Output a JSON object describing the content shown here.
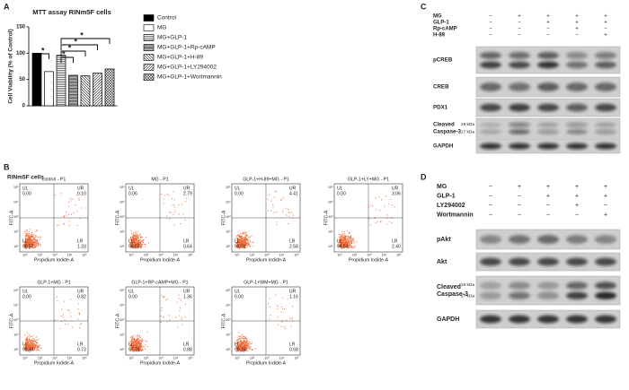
{
  "panel_labels": [
    "A",
    "B",
    "C",
    "D"
  ],
  "chart_data": {
    "type": "bar",
    "title": "MTT assay RINm5F cells",
    "y_label": "Cell Viability (% of Control)",
    "categories": [
      "Control",
      "MG",
      "MG+GLP-1",
      "MG+GLP-1+Rp-cAMP",
      "MG+GLP-1+H-89",
      "MG+GLP-1+LY294002",
      "MG+GLP-1+Wortmannin"
    ],
    "values": [
      100,
      65,
      96,
      58,
      57,
      62,
      70
    ],
    "color": "#000000",
    "ylim": [
      0,
      150
    ],
    "yticks": [
      0,
      50,
      100,
      150
    ],
    "annotations": [
      "*",
      "*",
      "*",
      "*",
      "*"
    ]
  },
  "flow": {
    "subtitle": "RINm5F cells",
    "x_label": "Propidium Iodide-A",
    "y_label": "FITC-A",
    "axis_ticks": [
      "10¹",
      "10²",
      "10³",
      "10⁴",
      "10⁵"
    ],
    "plots": [
      {
        "title": "control - P1",
        "quadrants": [
          {
            "label": "UL",
            "value": "0.00"
          },
          {
            "label": "UR",
            "value": "0.10"
          },
          {
            "label": "LL",
            "value": "98.57"
          },
          {
            "label": "LR",
            "value": "1.33"
          }
        ]
      },
      {
        "title": "MG - P1",
        "quadrants": [
          {
            "label": "UL",
            "value": "0.06"
          },
          {
            "label": "UR",
            "value": "2.79"
          },
          {
            "label": "LL",
            "value": "96.50"
          },
          {
            "label": "LR",
            "value": "0.64"
          }
        ]
      },
      {
        "title": "GLP-1+H-89+MG - P1",
        "quadrants": [
          {
            "label": "UL",
            "value": "0.00"
          },
          {
            "label": "UR",
            "value": "4.41"
          },
          {
            "label": "LL",
            "value": "93.01"
          },
          {
            "label": "LR",
            "value": "2.58"
          }
        ]
      },
      {
        "title": "GLP-1+LY+MG - P1",
        "quadrants": [
          {
            "label": "UL",
            "value": "0.00"
          },
          {
            "label": "UR",
            "value": "3.06"
          },
          {
            "label": "LL",
            "value": "94.54"
          },
          {
            "label": "LR",
            "value": "2.40"
          }
        ]
      },
      {
        "title": "GLP-1+MG - P1",
        "quadrants": [
          {
            "label": "UL",
            "value": "0.00"
          },
          {
            "label": "UR",
            "value": "0.82"
          },
          {
            "label": "LL",
            "value": "98.44"
          },
          {
            "label": "LR",
            "value": "0.73"
          }
        ]
      },
      {
        "title": "GLP-1+RP-cAMP+MG - P1",
        "quadrants": [
          {
            "label": "UL",
            "value": "0.00"
          },
          {
            "label": "UR",
            "value": "1.36"
          },
          {
            "label": "LL",
            "value": "97.76"
          },
          {
            "label": "LR",
            "value": "0.88"
          }
        ]
      },
      {
        "title": "GLP-1+WM+MG - P1",
        "quadrants": [
          {
            "label": "UL",
            "value": "0.00"
          },
          {
            "label": "UR",
            "value": "1.16"
          },
          {
            "label": "LL",
            "value": "98.16"
          },
          {
            "label": "LR",
            "value": "0.68"
          }
        ]
      }
    ]
  },
  "blot_c": {
    "treatments": [
      {
        "name": "MG",
        "signs": [
          "−",
          "+",
          "+",
          "+",
          "+"
        ]
      },
      {
        "name": "GLP-1",
        "signs": [
          "−",
          "−",
          "+",
          "+",
          "+"
        ]
      },
      {
        "name": "Rp-cAMP",
        "signs": [
          "−",
          "−",
          "−",
          "+",
          "−"
        ]
      },
      {
        "name": "H-89",
        "signs": [
          "−",
          "−",
          "−",
          "−",
          "+"
        ]
      }
    ],
    "bands": [
      {
        "name": [
          "pCREB"
        ]
      },
      {
        "name": [
          "CREB"
        ]
      },
      {
        "name": [
          "PDX1"
        ]
      },
      {
        "name": [
          "Cleaved",
          "Caspase-3"
        ],
        "sizes": [
          "19 kDa",
          "17 kDa"
        ]
      },
      {
        "name": [
          "GAPDH"
        ]
      }
    ]
  },
  "blot_d": {
    "treatments": [
      {
        "name": "MG",
        "signs": [
          "−",
          "+",
          "+",
          "+",
          "+"
        ]
      },
      {
        "name": "GLP-1",
        "signs": [
          "−",
          "−",
          "+",
          "+",
          "+"
        ]
      },
      {
        "name": "LY294002",
        "signs": [
          "−",
          "−",
          "−",
          "+",
          "−"
        ]
      },
      {
        "name": "Wortmannin",
        "signs": [
          "−",
          "−",
          "−",
          "−",
          "+"
        ]
      }
    ],
    "bands": [
      {
        "name": [
          "pAkt"
        ]
      },
      {
        "name": [
          "Akt"
        ]
      },
      {
        "name": [
          "Cleaved",
          "Caspase-3"
        ],
        "sizes": [
          "19 kDa",
          "17 kDa"
        ]
      },
      {
        "name": [
          "GAPDH"
        ]
      }
    ]
  }
}
